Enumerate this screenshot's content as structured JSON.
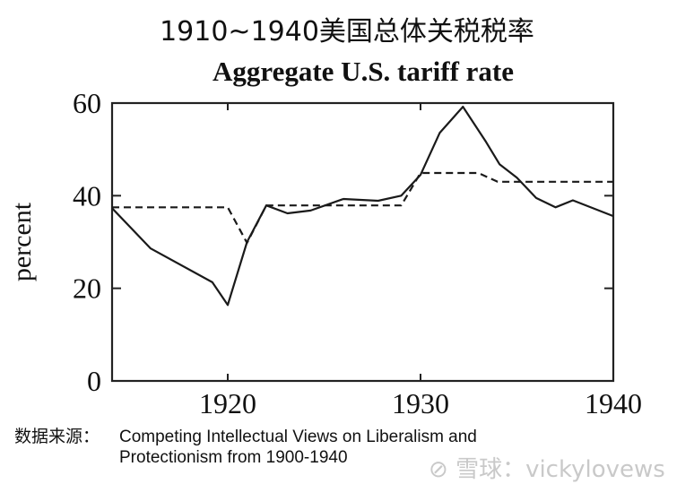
{
  "header": {
    "cn_title": "1910~1940美国总体关税税率"
  },
  "source": {
    "label": "数据来源：",
    "line1": "Competing Intellectual Views on Liberalism and",
    "line2": "Protectionism from 1900-1940"
  },
  "watermark": {
    "icon": "xueqiu-logo-icon",
    "text": "雪球：vickylovews"
  },
  "chart_data": {
    "type": "line",
    "title": "Aggregate U.S. tariff rate",
    "xlabel": "",
    "ylabel": "percent",
    "xlim": [
      1914,
      1940
    ],
    "ylim": [
      0,
      60
    ],
    "xticks": [
      1920,
      1930,
      1940
    ],
    "yticks": [
      0,
      20,
      40,
      60
    ],
    "grid": false,
    "legend": null,
    "series": [
      {
        "name": "solid",
        "style": "solid",
        "x": [
          1914,
          1916,
          1919.2,
          1920,
          1921,
          1922,
          1923.1,
          1924.3,
          1926,
          1927.8,
          1929,
          1930,
          1931,
          1932.2,
          1933.4,
          1934.1,
          1935,
          1936,
          1937,
          1937.9,
          1940
        ],
        "values": [
          37.3,
          28.6,
          21.3,
          16.4,
          30,
          37.9,
          36.2,
          36.8,
          39.3,
          38.9,
          40,
          44.5,
          53.6,
          59.2,
          51.6,
          46.8,
          43.9,
          39.5,
          37.5,
          39,
          35.6
        ]
      },
      {
        "name": "dashed",
        "style": "dashed",
        "x": [
          1914,
          1920,
          1921,
          1922,
          1929,
          1930,
          1933,
          1934,
          1940
        ],
        "values": [
          37.5,
          37.5,
          29.8,
          37.9,
          37.9,
          44.9,
          44.9,
          43,
          43
        ]
      }
    ]
  }
}
